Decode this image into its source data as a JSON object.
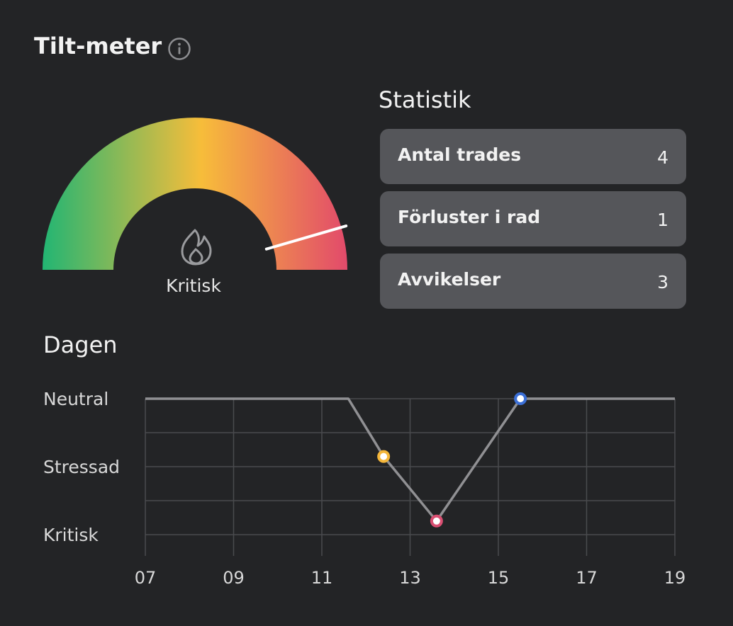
{
  "header": {
    "title": "Tilt-meter",
    "info_icon": "info-icon"
  },
  "gauge": {
    "label": "Kritisk",
    "icon": "flame-icon",
    "level": 0.91,
    "colors": [
      "#22b573",
      "#f7bd3a",
      "#e24a6b"
    ]
  },
  "stats": {
    "title": "Statistik",
    "items": [
      {
        "label": "Antal trades",
        "value": "4"
      },
      {
        "label": "Förluster i rad",
        "value": "1"
      },
      {
        "label": "Avvikelser",
        "value": "3"
      }
    ]
  },
  "day": {
    "title": "Dagen",
    "chart_data": {
      "type": "line",
      "x_ticks": [
        "07",
        "09",
        "11",
        "13",
        "15",
        "17",
        "19"
      ],
      "y_levels": [
        "Neutral",
        "Stressad",
        "Kritisk"
      ],
      "xlim": [
        7,
        19
      ],
      "ylim": [
        0,
        2
      ],
      "line_color": "#909093",
      "points": [
        {
          "x": 7,
          "y": 2
        },
        {
          "x": 11.6,
          "y": 2
        },
        {
          "x": 12.4,
          "y": 1.15,
          "marker": "#f4b63a"
        },
        {
          "x": 13.6,
          "y": 0.2,
          "marker": "#d94f72"
        },
        {
          "x": 15.5,
          "y": 2,
          "marker": "#3b6fd6"
        },
        {
          "x": 19,
          "y": 2
        }
      ]
    }
  }
}
